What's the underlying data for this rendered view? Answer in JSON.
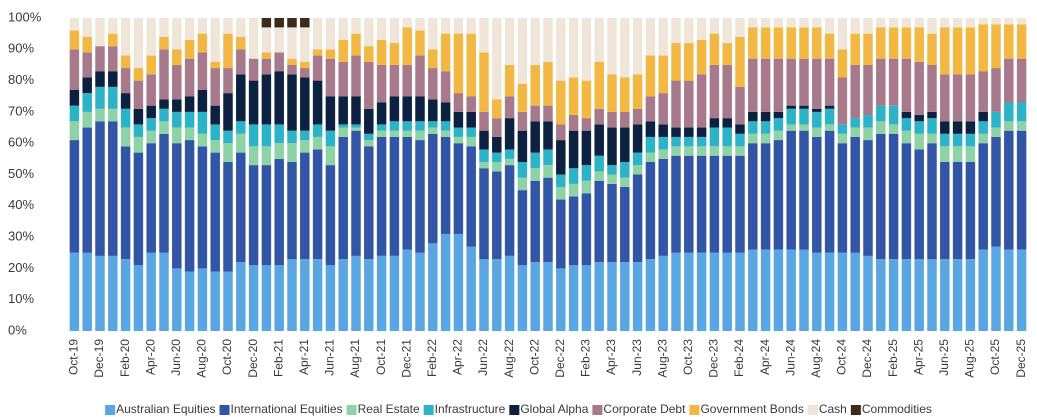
{
  "chart_data": {
    "type": "stacked_bar",
    "categories": [
      "Oct-19",
      null,
      "Dec-19",
      null,
      "Feb-20",
      null,
      "Apr-20",
      null,
      "Jun-20",
      null,
      "Aug-20",
      null,
      "Oct-20",
      null,
      "Dec-20",
      null,
      "Feb-21",
      null,
      "Apr-21",
      null,
      "Jun-21",
      null,
      "Aug-21",
      null,
      "Oct-21",
      null,
      "Dec-21",
      null,
      "Feb-22",
      null,
      "Apr-22",
      null,
      "Jun-22",
      null,
      "Aug-22",
      null,
      "Oct-22",
      null,
      "Dec-22",
      null,
      "Feb-23",
      null,
      "Apr-23",
      null,
      "Jun-23",
      null,
      "Aug-23",
      null,
      "Oct-23",
      null,
      "Dec-23",
      null,
      "Feb-24",
      null,
      "Apr-24",
      null,
      "Jun-24",
      null,
      "Aug-24",
      null,
      "Oct-24",
      null,
      "Dec-24",
      null,
      "Feb-25",
      null,
      "Apr-25",
      null,
      "Jun-25",
      null,
      "Aug-25",
      null,
      "Oct-25",
      null,
      "Dec-25"
    ],
    "series": [
      {
        "name": "Australian Equities",
        "color": "#5aa6e3",
        "values": [
          25,
          25,
          24,
          24,
          23,
          21,
          25,
          25,
          20,
          19,
          20,
          19,
          19,
          22,
          21,
          21,
          21,
          23,
          23,
          23,
          21,
          23,
          24,
          23,
          24,
          24,
          26,
          25,
          28,
          31,
          31,
          27,
          23,
          23,
          24,
          21,
          22,
          22,
          20,
          21,
          21,
          22,
          22,
          22,
          22,
          23,
          24,
          25,
          25,
          25,
          25,
          25,
          25,
          26,
          26,
          26,
          26,
          26,
          25,
          25,
          25,
          25,
          24,
          23,
          23,
          23,
          23,
          23,
          23,
          23,
          23,
          26,
          27,
          26,
          26
        ]
      },
      {
        "name": "International Equities",
        "color": "#3256a5",
        "values": [
          36,
          40,
          43,
          43,
          36,
          36,
          35,
          38,
          40,
          42,
          39,
          38,
          35,
          35,
          32,
          32,
          34,
          31,
          34,
          35,
          32,
          39,
          40,
          36,
          38,
          38,
          36,
          36,
          35,
          31,
          29,
          32,
          29,
          28,
          29,
          24,
          26,
          27,
          22,
          22,
          23,
          26,
          25,
          24,
          28,
          31,
          31,
          31,
          31,
          31,
          31,
          31,
          31,
          34,
          34,
          35,
          38,
          38,
          37,
          39,
          35,
          37,
          37,
          40,
          40,
          37,
          35,
          37,
          31,
          31,
          31,
          34,
          35,
          38,
          38
        ]
      },
      {
        "name": "Real Estate",
        "color": "#8ed3a6",
        "values": [
          6,
          5,
          4,
          4,
          6,
          5,
          4,
          4,
          5,
          4,
          4,
          4,
          6,
          6,
          6,
          6,
          5,
          6,
          4,
          4,
          6,
          3,
          1,
          2,
          2,
          2,
          2,
          3,
          2,
          2,
          2,
          3,
          2,
          3,
          2,
          4,
          4,
          4,
          4,
          4,
          4,
          3,
          3,
          3,
          3,
          3,
          3,
          3,
          3,
          3,
          3,
          3,
          3,
          3,
          3,
          3,
          2,
          2,
          3,
          2,
          3,
          3,
          4,
          4,
          3,
          4,
          5,
          3,
          5,
          5,
          5,
          3,
          3,
          3,
          3
        ]
      },
      {
        "name": "Infrastructure",
        "color": "#2db3c8",
        "values": [
          5,
          6,
          7,
          7,
          6,
          4,
          4,
          4,
          5,
          5,
          7,
          5,
          4,
          4,
          7,
          7,
          6,
          4,
          3,
          4,
          5,
          1,
          1,
          2,
          2,
          3,
          3,
          3,
          2,
          3,
          3,
          3,
          4,
          3,
          3,
          5,
          5,
          5,
          4,
          5,
          5,
          5,
          3,
          5,
          4,
          5,
          4,
          3,
          3,
          3,
          6,
          6,
          4,
          4,
          4,
          4,
          5,
          5,
          5,
          5,
          3,
          3,
          4,
          5,
          6,
          4,
          4,
          5,
          4,
          4,
          4,
          4,
          5,
          6,
          6
        ]
      },
      {
        "name": "Global Alpha",
        "color": "#0c2140",
        "values": [
          5,
          5,
          5,
          5,
          5,
          5,
          4,
          3,
          4,
          5,
          7,
          6,
          12,
          15,
          14,
          16,
          17,
          18,
          17,
          14,
          11,
          9,
          9,
          8,
          7,
          8,
          8,
          8,
          7,
          6,
          5,
          5,
          6,
          5,
          10,
          10,
          10,
          9,
          11,
          12,
          11,
          10,
          12,
          11,
          9,
          5,
          4,
          3,
          3,
          3,
          3,
          3,
          3,
          3,
          3,
          2,
          1,
          1,
          1,
          1,
          0,
          0,
          0,
          0,
          0,
          2,
          2,
          2,
          4,
          4,
          4,
          3,
          0,
          0,
          0
        ]
      },
      {
        "name": "Corporate Debt",
        "color": "#a67a8b",
        "values": [
          13,
          8,
          8,
          8,
          8,
          9,
          10,
          16,
          11,
          12,
          12,
          12,
          8,
          8,
          7,
          5,
          6,
          3,
          3,
          8,
          12,
          11,
          13,
          15,
          12,
          10,
          10,
          13,
          10,
          10,
          6,
          5,
          6,
          6,
          7,
          6,
          5,
          5,
          5,
          5,
          4,
          5,
          5,
          5,
          5,
          8,
          10,
          15,
          15,
          17,
          17,
          17,
          12,
          17,
          17,
          17,
          15,
          15,
          16,
          15,
          15,
          17,
          16,
          15,
          15,
          17,
          17,
          15,
          15,
          15,
          15,
          13,
          14,
          14,
          14
        ]
      },
      {
        "name": "Government Bonds",
        "color": "#f2b843",
        "values": [
          6,
          5,
          0,
          4,
          4,
          4,
          6,
          4,
          5,
          6,
          6,
          2,
          11,
          4,
          0,
          2,
          0,
          2,
          2,
          2,
          3,
          7,
          7,
          5,
          8,
          7,
          12,
          8,
          6,
          12,
          19,
          20,
          19,
          6,
          10,
          9,
          13,
          14,
          14,
          12,
          12,
          15,
          12,
          11,
          11,
          13,
          12,
          12,
          12,
          11,
          10,
          7,
          16,
          10,
          10,
          10,
          10,
          10,
          10,
          8,
          9,
          10,
          10,
          10,
          10,
          10,
          11,
          10,
          15,
          15,
          15,
          15,
          14,
          11,
          11
        ]
      },
      {
        "name": "Cash",
        "color": "#efe6d9",
        "values": [
          4,
          6,
          9,
          5,
          12,
          16,
          12,
          6,
          10,
          7,
          5,
          14,
          5,
          6,
          13,
          8,
          8,
          10,
          11,
          10,
          10,
          7,
          5,
          9,
          7,
          8,
          3,
          4,
          10,
          5,
          5,
          5,
          11,
          26,
          15,
          21,
          15,
          14,
          20,
          19,
          20,
          14,
          18,
          19,
          18,
          12,
          12,
          8,
          8,
          7,
          5,
          8,
          6,
          3,
          3,
          3,
          3,
          3,
          3,
          5,
          10,
          5,
          5,
          3,
          3,
          3,
          3,
          5,
          3,
          3,
          3,
          2,
          2,
          2,
          2
        ]
      },
      {
        "name": "Commodities",
        "color": "#3d2b19",
        "values": [
          0,
          0,
          0,
          0,
          0,
          0,
          0,
          0,
          0,
          0,
          0,
          0,
          0,
          0,
          0,
          3,
          3,
          3,
          3,
          0,
          0,
          0,
          0,
          0,
          0,
          0,
          0,
          0,
          0,
          0,
          0,
          0,
          0,
          0,
          0,
          0,
          0,
          0,
          0,
          0,
          0,
          0,
          0,
          0,
          0,
          0,
          0,
          0,
          0,
          0,
          0,
          0,
          0,
          0,
          0,
          0,
          0,
          0,
          0,
          0,
          0,
          0,
          0,
          0,
          0,
          0,
          0,
          0,
          0,
          0,
          0,
          0,
          0,
          0,
          0
        ]
      }
    ],
    "ylim": [
      0,
      100
    ],
    "yticks": [
      {
        "value": 0,
        "label": "0%"
      },
      {
        "value": 10,
        "label": "10%"
      },
      {
        "value": 20,
        "label": "20%"
      },
      {
        "value": 30,
        "label": "30%"
      },
      {
        "value": 40,
        "label": "40%"
      },
      {
        "value": 50,
        "label": "50%"
      },
      {
        "value": 60,
        "label": "60%"
      },
      {
        "value": 70,
        "label": "70%"
      },
      {
        "value": 80,
        "label": "80%"
      },
      {
        "value": 90,
        "label": "90%"
      },
      {
        "value": 100,
        "label": "100%"
      }
    ],
    "grid": false,
    "legend": "bottom"
  }
}
